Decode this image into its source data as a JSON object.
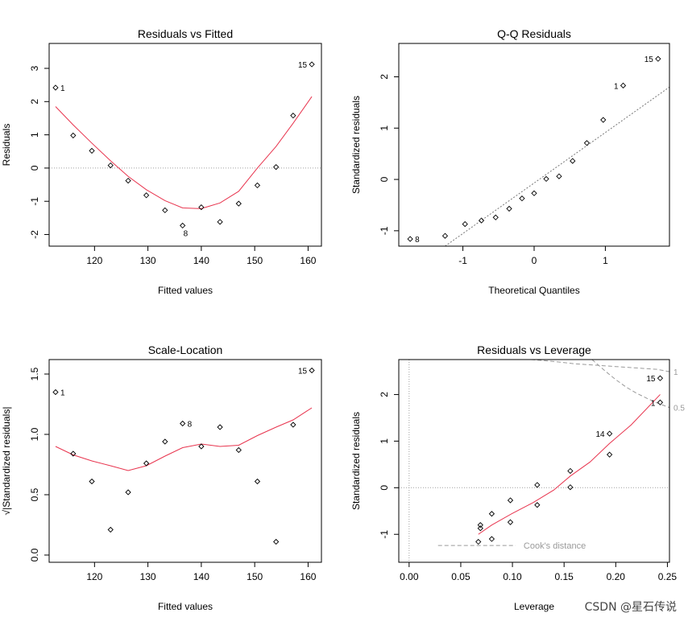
{
  "watermark": "CSDN @星石传说",
  "chart_data": [
    {
      "id": "rvf",
      "type": "scatter",
      "title": "Residuals vs Fitted",
      "xlabel": "Fitted values",
      "ylabel": "Residuals",
      "xlim": [
        111.5,
        162.5
      ],
      "ylim": [
        -2.35,
        3.75
      ],
      "xticks": [
        120,
        130,
        140,
        150,
        160
      ],
      "yticks": [
        -2,
        -1,
        0,
        1,
        2,
        3
      ],
      "x": [
        112.7,
        116,
        119.5,
        123,
        126.3,
        129.7,
        133.2,
        136.5,
        140,
        143.5,
        147,
        150.5,
        154,
        157.2,
        160.7
      ],
      "y": [
        2.42,
        0.98,
        0.52,
        0.08,
        -0.38,
        -0.82,
        -1.27,
        -1.73,
        -1.18,
        -1.62,
        -1.07,
        -0.52,
        0.03,
        1.58,
        3.12
      ],
      "point_labels": [
        {
          "index": 0,
          "text": "1"
        },
        {
          "index": 7,
          "text": "8"
        },
        {
          "index": 14,
          "text": "15"
        }
      ],
      "hline": 0,
      "smooth": {
        "x": [
          112.7,
          116,
          119.5,
          123,
          126.3,
          129.7,
          133.2,
          136.5,
          140,
          143.5,
          147,
          150.5,
          154,
          157.2,
          160.7
        ],
        "y": [
          1.85,
          1.3,
          0.75,
          0.22,
          -0.25,
          -0.65,
          -0.98,
          -1.2,
          -1.22,
          -1.05,
          -0.7,
          0.0,
          0.65,
          1.35,
          2.15
        ]
      }
    },
    {
      "id": "qq",
      "type": "scatter",
      "title": "Q-Q Residuals",
      "xlabel": "Theoretical Quantiles",
      "ylabel": "Standardized residuals",
      "xlim": [
        -1.9,
        1.9
      ],
      "ylim": [
        -1.3,
        2.65
      ],
      "xticks": [
        -1,
        0,
        1
      ],
      "yticks": [
        -1,
        0,
        1,
        2
      ],
      "x": [
        -1.74,
        -1.25,
        -0.97,
        -0.74,
        -0.54,
        -0.35,
        -0.17,
        0.0,
        0.17,
        0.35,
        0.54,
        0.74,
        0.97,
        1.25,
        1.74
      ],
      "y": [
        -1.16,
        -1.1,
        -0.87,
        -0.8,
        -0.74,
        -0.57,
        -0.37,
        -0.27,
        0.01,
        0.06,
        0.36,
        0.71,
        1.16,
        1.83,
        2.35
      ],
      "point_labels": [
        {
          "index": 0,
          "text": "8"
        },
        {
          "index": 13,
          "text": "1"
        },
        {
          "index": 14,
          "text": "15"
        }
      ],
      "refline": {
        "x": [
          -1.25,
          1.9
        ],
        "y": [
          -1.3,
          1.8
        ]
      }
    },
    {
      "id": "sl",
      "type": "scatter",
      "title": "Scale-Location",
      "xlabel": "Fitted values",
      "ylabel": "√|Standardized residuals|",
      "xlim": [
        111.5,
        162.5
      ],
      "ylim": [
        -0.06,
        1.62
      ],
      "xticks": [
        120,
        130,
        140,
        150,
        160
      ],
      "yticks": [
        0.0,
        0.5,
        1.0,
        1.5
      ],
      "ytick_labels": [
        "0.0",
        "0.5",
        "1.0",
        "1.5"
      ],
      "x": [
        112.7,
        116,
        119.5,
        123,
        126.3,
        129.7,
        133.2,
        136.5,
        140,
        143.5,
        147,
        150.5,
        154,
        157.2,
        160.7
      ],
      "y": [
        1.35,
        0.84,
        0.61,
        0.21,
        0.52,
        0.76,
        0.94,
        1.09,
        0.9,
        1.06,
        0.87,
        0.61,
        0.11,
        1.08,
        1.53
      ],
      "point_labels": [
        {
          "index": 0,
          "text": "1"
        },
        {
          "index": 7,
          "text": "8"
        },
        {
          "index": 14,
          "text": "15"
        }
      ],
      "smooth": {
        "x": [
          112.7,
          116,
          119.5,
          123,
          126.3,
          129.7,
          133.2,
          136.5,
          140,
          143.5,
          147,
          150.5,
          154,
          157.2,
          160.7
        ],
        "y": [
          0.9,
          0.83,
          0.78,
          0.74,
          0.7,
          0.74,
          0.82,
          0.89,
          0.92,
          0.9,
          0.91,
          0.99,
          1.06,
          1.12,
          1.22
        ]
      }
    },
    {
      "id": "rvl",
      "type": "scatter",
      "title": "Residuals vs Leverage",
      "xlabel": "Leverage",
      "ylabel": "Standardized residuals",
      "xlim": [
        -0.01,
        0.252
      ],
      "ylim": [
        -1.6,
        2.75
      ],
      "xticks": [
        0.0,
        0.05,
        0.1,
        0.15,
        0.2,
        0.25
      ],
      "xtick_labels": [
        "0.00",
        "0.05",
        "0.10",
        "0.15",
        "0.20",
        "0.25"
      ],
      "yticks": [
        -1,
        0,
        1,
        2
      ],
      "x": [
        0.067,
        0.069,
        0.069,
        0.08,
        0.08,
        0.098,
        0.098,
        0.124,
        0.124,
        0.156,
        0.156,
        0.194,
        0.194,
        0.243,
        0.243
      ],
      "y": [
        -1.16,
        -0.87,
        -0.8,
        -1.1,
        -0.56,
        -0.74,
        -0.27,
        -0.37,
        0.06,
        0.01,
        0.36,
        0.71,
        1.16,
        1.83,
        2.35
      ],
      "point_labels": [
        {
          "index": 12,
          "text": "14"
        },
        {
          "index": 13,
          "text": "1"
        },
        {
          "index": 14,
          "text": "15"
        }
      ],
      "hline": 0,
      "vline": 0,
      "smooth": {
        "x": [
          0.067,
          0.08,
          0.1,
          0.12,
          0.14,
          0.156,
          0.175,
          0.194,
          0.215,
          0.243
        ],
        "y": [
          -1.0,
          -0.8,
          -0.55,
          -0.32,
          -0.05,
          0.25,
          0.55,
          0.95,
          1.35,
          2.0
        ]
      },
      "cooks_distance": {
        "legend": "Cook's distance",
        "legend_line_x": [
          0.028,
          0.103
        ],
        "legend_line_y": -1.24,
        "contours": [
          {
            "level_label": "1",
            "x": [
              0.118,
              0.14,
              0.16,
              0.18,
              0.2,
              0.22,
              0.24,
              0.252
            ],
            "y": [
              2.75,
              2.71,
              2.66,
              2.63,
              2.6,
              2.57,
              2.54,
              2.49
            ]
          },
          {
            "level_label": "0.5",
            "x": [
              0.177,
              0.19,
              0.2,
              0.21,
              0.22,
              0.23,
              0.24,
              0.252
            ],
            "y": [
              2.75,
              2.5,
              2.32,
              2.16,
              2.03,
              1.92,
              1.82,
              1.72
            ]
          }
        ]
      }
    }
  ]
}
